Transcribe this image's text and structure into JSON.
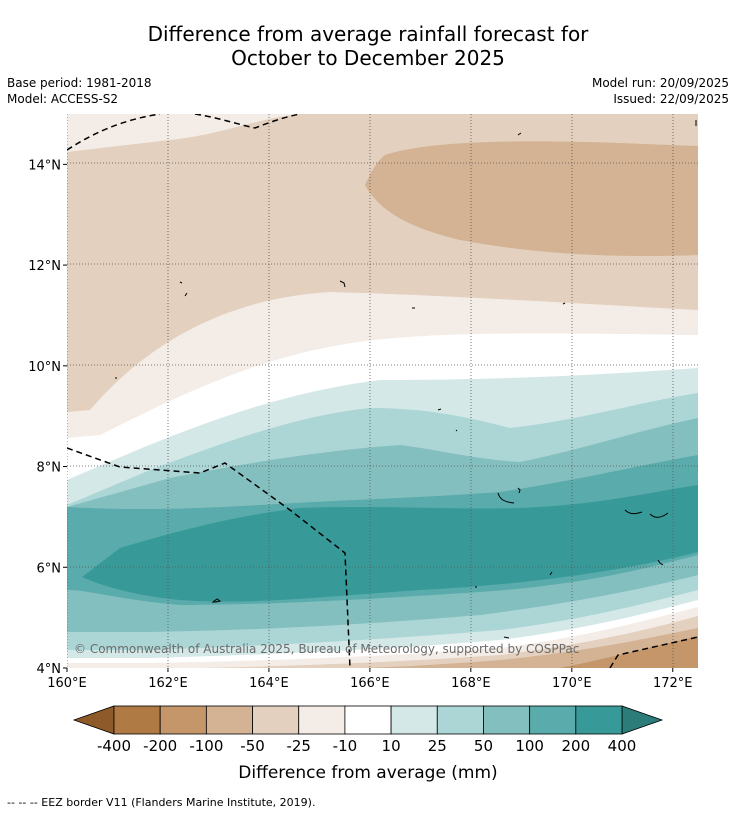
{
  "title_line1": "Difference from average rainfall forecast for",
  "title_line2": "October to December 2025",
  "base_period": "Base period: 1981-2018",
  "model": "Model: ACCESS-S2",
  "model_run": "Model run: 20/09/2025",
  "issued": "Issued: 22/09/2025",
  "copyright": "© Commonwealth of Australia 2025, Bureau of Meteorology, supported by COSPPac",
  "footer": "--  --  -- EEZ border V11 (Flanders Marine Institute, 2019).",
  "map": {
    "lon_range": [
      160,
      172.5
    ],
    "lat_range": [
      4,
      15
    ],
    "lon_ticks": [
      {
        "value": 160,
        "label": "160°E"
      },
      {
        "value": 162,
        "label": "162°E"
      },
      {
        "value": 164,
        "label": "164°E"
      },
      {
        "value": 166,
        "label": "166°E"
      },
      {
        "value": 168,
        "label": "168°E"
      },
      {
        "value": 170,
        "label": "170°E"
      },
      {
        "value": 172,
        "label": "172°E"
      }
    ],
    "lat_ticks": [
      {
        "value": 4,
        "label": "4°N"
      },
      {
        "value": 6,
        "label": "6°N"
      },
      {
        "value": 8,
        "label": "8°N"
      },
      {
        "value": 10,
        "label": "10°N"
      },
      {
        "value": 12,
        "label": "12°N"
      },
      {
        "value": 14,
        "label": "14°N"
      }
    ]
  },
  "colorbar": {
    "title": "Difference from average (mm)",
    "low_extension_color": "#8f5a2a",
    "high_extension_color": "#2c7d7a",
    "bins": [
      {
        "color": "#b07a45"
      },
      {
        "color": "#c4966a"
      },
      {
        "color": "#d3b393"
      },
      {
        "color": "#e3d0be"
      },
      {
        "color": "#f4ece6"
      },
      {
        "color": "#ffffff"
      },
      {
        "color": "#d5e8e8"
      },
      {
        "color": "#acd5d5"
      },
      {
        "color": "#84bfbf"
      },
      {
        "color": "#5aabab"
      },
      {
        "color": "#389a98"
      }
    ],
    "tick_labels": [
      "-400",
      "-200",
      "-100",
      "-50",
      "-25",
      "-10",
      "10",
      "25",
      "50",
      "100",
      "200",
      "400"
    ]
  }
}
